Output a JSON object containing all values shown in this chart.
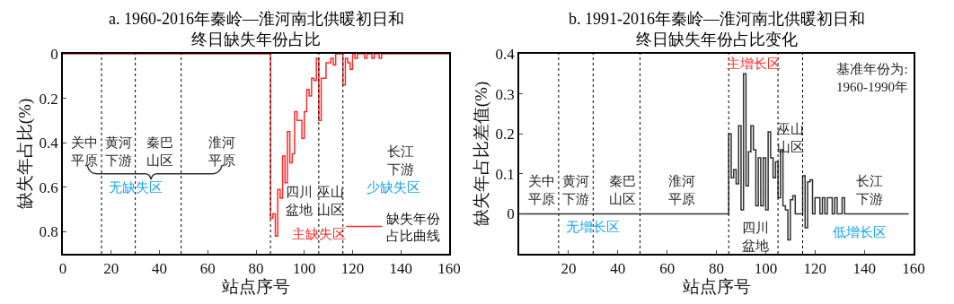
{
  "chart_data": [
    {
      "type": "step",
      "title": "a. 1960-2016年秦岭—淮河南北供暖初日和终日缺失年份占比",
      "xlabel": "站点序号",
      "ylabel": "缺失年占比(%)",
      "xlim": [
        0,
        160
      ],
      "xticks": [
        0,
        20,
        40,
        60,
        80,
        100,
        120,
        140,
        160
      ],
      "ylim": [
        0.9,
        0
      ],
      "yticks": [
        0,
        0.2,
        0.4,
        0.6,
        0.8
      ],
      "grid": false,
      "legend": "bottom right",
      "line_style": "solid",
      "marker": "none",
      "series": [
        {
          "name": "缺失年份占比曲线",
          "color": "#ff2a2a",
          "x": [
            0,
            86,
            87,
            88,
            89,
            90,
            91,
            92,
            93,
            94,
            95,
            96,
            97,
            98,
            99,
            100,
            101,
            102,
            103,
            104,
            105,
            106,
            107,
            108,
            109,
            110,
            111,
            112,
            113,
            116,
            117,
            118,
            119,
            120,
            121,
            122,
            125,
            126,
            128,
            129,
            131,
            132,
            160
          ],
          "values": [
            0,
            0.74,
            0.72,
            0.82,
            0.61,
            0.65,
            0.46,
            0.58,
            0.35,
            0.49,
            0.45,
            0.26,
            0.3,
            0.3,
            0.38,
            0.26,
            0.16,
            0.19,
            0.11,
            0.12,
            0.02,
            0.3,
            0.11,
            0.11,
            0.04,
            0.04,
            0.02,
            0.05,
            0,
            0.14,
            0.02,
            0.04,
            0.07,
            0,
            0.02,
            0,
            0.02,
            0,
            0.02,
            0,
            0.02,
            0,
            0
          ]
        }
      ],
      "ref_lines": [
        {
          "axis": "x",
          "value": 16,
          "color": "#000000",
          "line_style": "dotted"
        },
        {
          "axis": "x",
          "value": 30,
          "color": "#000000",
          "line_style": "dotted"
        },
        {
          "axis": "x",
          "value": 49,
          "color": "#000000",
          "line_style": "dotted"
        },
        {
          "axis": "x",
          "value": 86,
          "color": "#000000",
          "line_style": "dotted"
        },
        {
          "axis": "x",
          "value": 106,
          "color": "#000000",
          "line_style": "dotted"
        },
        {
          "axis": "x",
          "value": 116,
          "color": "#000000",
          "line_style": "dotted"
        }
      ],
      "annotations": [
        "关中平原",
        "黄河下游",
        "秦巴山区",
        "淮河平原",
        "无缺失区",
        "长江下游",
        "少缺失区",
        "四川盆地",
        "巫山山区",
        "主缺失区"
      ]
    },
    {
      "type": "step",
      "title": "b. 1991-2016年秦岭—淮河南北供暖初日和终日缺失年份占比变化",
      "xlabel": "站点序号",
      "ylabel": "缺失年占比差值(%)",
      "xlim": [
        0,
        160
      ],
      "xticks": [
        20,
        40,
        60,
        80,
        100,
        120,
        140,
        160
      ],
      "ylim": [
        -0.1,
        0.4
      ],
      "yticks": [
        0,
        0.1,
        0.2,
        0.3,
        0.4
      ],
      "grid": false,
      "legend": false,
      "line_style": "solid",
      "marker": "none",
      "series": [
        {
          "color": "#303030",
          "x": [
            0,
            85,
            86,
            87,
            88,
            89,
            90,
            91,
            92,
            93,
            94,
            95,
            96,
            97,
            98,
            99,
            100,
            101,
            102,
            103,
            104,
            105,
            106,
            107,
            108,
            109,
            110,
            111,
            112,
            115,
            116,
            117,
            118,
            119,
            120,
            122,
            123,
            124,
            125,
            127,
            128,
            129,
            131,
            132,
            158
          ],
          "values": [
            0,
            0.2,
            0.09,
            0.11,
            0.075,
            0.22,
            0.01,
            0.35,
            0.07,
            0.155,
            0.22,
            0.16,
            0.02,
            0.14,
            0.02,
            0.14,
            0.01,
            0.205,
            0.14,
            0.09,
            0.13,
            0.04,
            0.16,
            0.02,
            0.01,
            -0.065,
            0.035,
            0.045,
            0,
            0.095,
            -0.035,
            0.08,
            0.085,
            0,
            0.04,
            0,
            0.04,
            0,
            0.04,
            0,
            0.04,
            0,
            0.04,
            0,
            0
          ]
        }
      ],
      "ref_lines": [
        {
          "axis": "x",
          "value": 16,
          "color": "#000000",
          "line_style": "dotted"
        },
        {
          "axis": "x",
          "value": 30,
          "color": "#000000",
          "line_style": "dotted"
        },
        {
          "axis": "x",
          "value": 49,
          "color": "#000000",
          "line_style": "dotted"
        },
        {
          "axis": "x",
          "value": 85,
          "color": "#000000",
          "line_style": "dotted"
        },
        {
          "axis": "x",
          "value": 105,
          "color": "#000000",
          "line_style": "dotted"
        },
        {
          "axis": "x",
          "value": 115,
          "color": "#000000",
          "line_style": "dotted"
        }
      ],
      "annotations": [
        "关中平原",
        "黄河下游",
        "秦巴山区",
        "淮河平原",
        "无增长区",
        "四川盆地",
        "巫山山区",
        "主增长区",
        "长江下游",
        "低增长区",
        "基准年份为:1960-1990年"
      ]
    }
  ]
}
